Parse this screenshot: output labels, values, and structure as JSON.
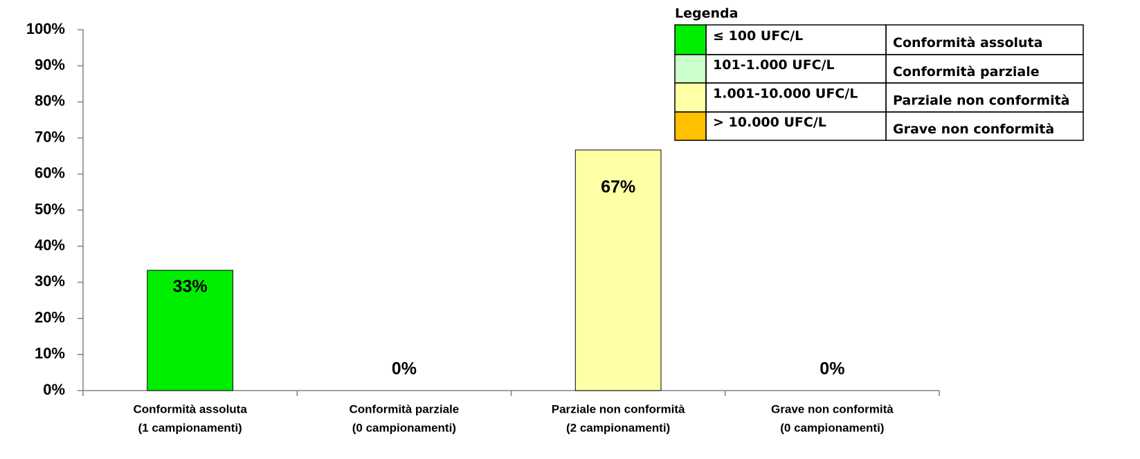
{
  "chart_data": {
    "type": "bar",
    "categories": [
      [
        "Conformità assoluta",
        "(1 campionamenti)"
      ],
      [
        "Conformità parziale",
        "(0 campionamenti)"
      ],
      [
        "Parziale non conformità",
        "(2 campionamenti)"
      ],
      [
        "Grave non conformità",
        "(0 campionamenti)"
      ]
    ],
    "values": [
      33.33,
      0,
      66.67,
      0
    ],
    "value_labels": [
      "33%",
      "0%",
      "67%",
      "0%"
    ],
    "colors": [
      "#00ee00",
      "#ccffcc",
      "#ffffa6",
      "#ffc000"
    ],
    "value_label_colors": [
      "#000000",
      "#000000",
      "#ff6600",
      "#ff0000"
    ],
    "ylim": [
      0,
      100
    ],
    "yticks": [
      {
        "value": 0,
        "label": "0%"
      },
      {
        "value": 10,
        "label": "10%"
      },
      {
        "value": 20,
        "label": "20%"
      },
      {
        "value": 30,
        "label": "30%"
      },
      {
        "value": 40,
        "label": "40%"
      },
      {
        "value": 50,
        "label": "50%"
      },
      {
        "value": 60,
        "label": "60%"
      },
      {
        "value": 70,
        "label": "70%"
      },
      {
        "value": 80,
        "label": "80%"
      },
      {
        "value": 90,
        "label": "90%"
      },
      {
        "value": 100,
        "label": "100%"
      }
    ],
    "legend": {
      "title": "Legenda",
      "rows": [
        {
          "color": "#00ee00",
          "range": "≤ 100 UFC/L",
          "label": "Conformità assoluta"
        },
        {
          "color": "#ccffcc",
          "range": "101-1.000 UFC/L",
          "label": "Conformità parziale"
        },
        {
          "color": "#ffffa6",
          "range": "1.001-10.000 UFC/L",
          "label": "Parziale non conformità"
        },
        {
          "color": "#ffc000",
          "range": "> 10.000 UFC/L",
          "label": "Grave non conformità"
        }
      ]
    }
  }
}
